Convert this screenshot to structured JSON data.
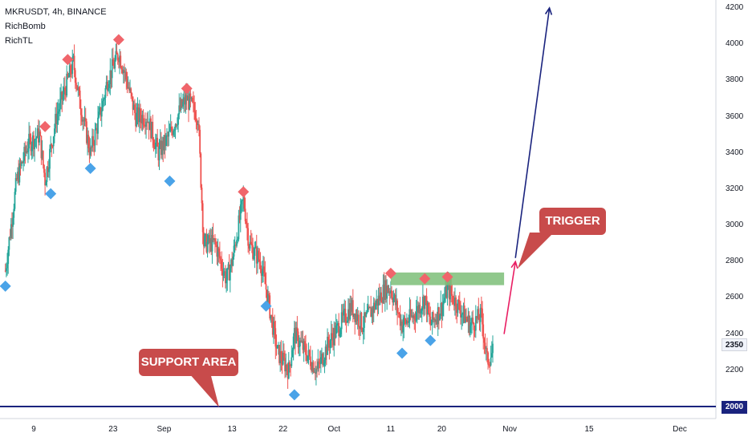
{
  "header": {
    "symbol_line": "MKRUSDT, 4h, BINANCE",
    "indicator1": "RichBomb",
    "indicator2": "RichTL"
  },
  "colors": {
    "bull": "#26a69a",
    "bear": "#ef5350",
    "top_marker": "#f0656b",
    "bottom_marker": "#4aa3e8",
    "support_line": "#1a237e",
    "zone": "#7dbe78",
    "callout": "#c84b4b",
    "projection_trigger": "#e91e63",
    "projection_target": "#1a237e"
  },
  "annotations": {
    "support_label": "SUPPORT AREA",
    "trigger_label": "TRIGGER"
  },
  "price_tags": {
    "current": "2350",
    "support": "2000"
  },
  "chart_data": {
    "type": "candlestick",
    "title": "MKRUSDT, 4h, BINANCE",
    "xlabel": "",
    "ylabel": "",
    "ylim": [
      1880,
      4250
    ],
    "y_ticks": [
      2200,
      2400,
      2600,
      2800,
      3000,
      3200,
      3400,
      3600,
      3800,
      4000,
      4200
    ],
    "x_ticks": [
      {
        "label": "9",
        "date": "2021-08-09"
      },
      {
        "label": "23",
        "date": "2021-08-23"
      },
      {
        "label": "Sep",
        "date": "2021-09-01"
      },
      {
        "label": "13",
        "date": "2021-09-13"
      },
      {
        "label": "22",
        "date": "2021-09-22"
      },
      {
        "label": "Oct",
        "date": "2021-10-01"
      },
      {
        "label": "11",
        "date": "2021-10-11"
      },
      {
        "label": "20",
        "date": "2021-10-20"
      },
      {
        "label": "Nov",
        "date": "2021-11-01"
      },
      {
        "label": "15",
        "date": "2021-11-15"
      },
      {
        "label": "Dec",
        "date": "2021-12-01"
      }
    ],
    "price_path": [
      [
        "2021-08-04",
        2750
      ],
      [
        "2021-08-06",
        3250
      ],
      [
        "2021-08-08",
        3450
      ],
      [
        "2021-08-10",
        3500
      ],
      [
        "2021-08-11",
        3250
      ],
      [
        "2021-08-13",
        3600
      ],
      [
        "2021-08-15",
        3800
      ],
      [
        "2021-08-16",
        3900
      ],
      [
        "2021-08-17",
        3700
      ],
      [
        "2021-08-18",
        3550
      ],
      [
        "2021-08-19",
        3400
      ],
      [
        "2021-08-21",
        3650
      ],
      [
        "2021-08-22",
        3800
      ],
      [
        "2021-08-24",
        3950
      ],
      [
        "2021-08-25",
        3850
      ],
      [
        "2021-08-27",
        3600
      ],
      [
        "2021-08-29",
        3600
      ],
      [
        "2021-08-31",
        3400
      ],
      [
        "2021-09-02",
        3500
      ],
      [
        "2021-09-04",
        3650
      ],
      [
        "2021-09-05",
        3700
      ],
      [
        "2021-09-07",
        3600
      ],
      [
        "2021-09-08",
        2900
      ],
      [
        "2021-09-10",
        2900
      ],
      [
        "2021-09-12",
        2700
      ],
      [
        "2021-09-13",
        2800
      ],
      [
        "2021-09-15",
        3150
      ],
      [
        "2021-09-16",
        2900
      ],
      [
        "2021-09-18",
        2800
      ],
      [
        "2021-09-19",
        2650
      ],
      [
        "2021-09-21",
        2300
      ],
      [
        "2021-09-23",
        2200
      ],
      [
        "2021-09-24",
        2400
      ],
      [
        "2021-09-26",
        2300
      ],
      [
        "2021-09-28",
        2200
      ],
      [
        "2021-09-30",
        2350
      ],
      [
        "2021-10-02",
        2450
      ],
      [
        "2021-10-04",
        2550
      ],
      [
        "2021-10-06",
        2450
      ],
      [
        "2021-10-08",
        2550
      ],
      [
        "2021-10-10",
        2650
      ],
      [
        "2021-10-11",
        2650
      ],
      [
        "2021-10-13",
        2450
      ],
      [
        "2021-10-15",
        2500
      ],
      [
        "2021-10-17",
        2600
      ],
      [
        "2021-10-18",
        2450
      ],
      [
        "2021-10-20",
        2550
      ],
      [
        "2021-10-21",
        2650
      ],
      [
        "2021-10-23",
        2550
      ],
      [
        "2021-10-25",
        2450
      ],
      [
        "2021-10-27",
        2500
      ],
      [
        "2021-10-28",
        2250
      ],
      [
        "2021-10-29",
        2300
      ]
    ],
    "top_markers": [
      {
        "date": "2021-08-11",
        "price": 3510
      },
      {
        "date": "2021-08-15",
        "price": 3880
      },
      {
        "date": "2021-08-24",
        "price": 3990
      },
      {
        "date": "2021-09-05",
        "price": 3720
      },
      {
        "date": "2021-09-15",
        "price": 3150
      },
      {
        "date": "2021-10-11",
        "price": 2700
      },
      {
        "date": "2021-10-17",
        "price": 2670
      },
      {
        "date": "2021-10-21",
        "price": 2680
      }
    ],
    "bottom_markers": [
      {
        "date": "2021-08-04",
        "price": 2700
      },
      {
        "date": "2021-08-12",
        "price": 3210
      },
      {
        "date": "2021-08-19",
        "price": 3350
      },
      {
        "date": "2021-09-02",
        "price": 3280
      },
      {
        "date": "2021-09-19",
        "price": 2590
      },
      {
        "date": "2021-09-24",
        "price": 2100
      },
      {
        "date": "2021-10-13",
        "price": 2330
      },
      {
        "date": "2021-10-18",
        "price": 2400
      }
    ],
    "support_level": 2000,
    "resistance_zone": {
      "from_date": "2021-10-11",
      "to_date": "2021-10-31",
      "low": 2670,
      "high": 2740
    },
    "projection_trigger": [
      [
        "2021-10-31",
        2400
      ],
      [
        "2021-11-02",
        2800
      ]
    ],
    "projection_target": [
      [
        "2021-11-02",
        2820
      ],
      [
        "2021-11-08",
        4200
      ]
    ],
    "last_price": 2350
  }
}
